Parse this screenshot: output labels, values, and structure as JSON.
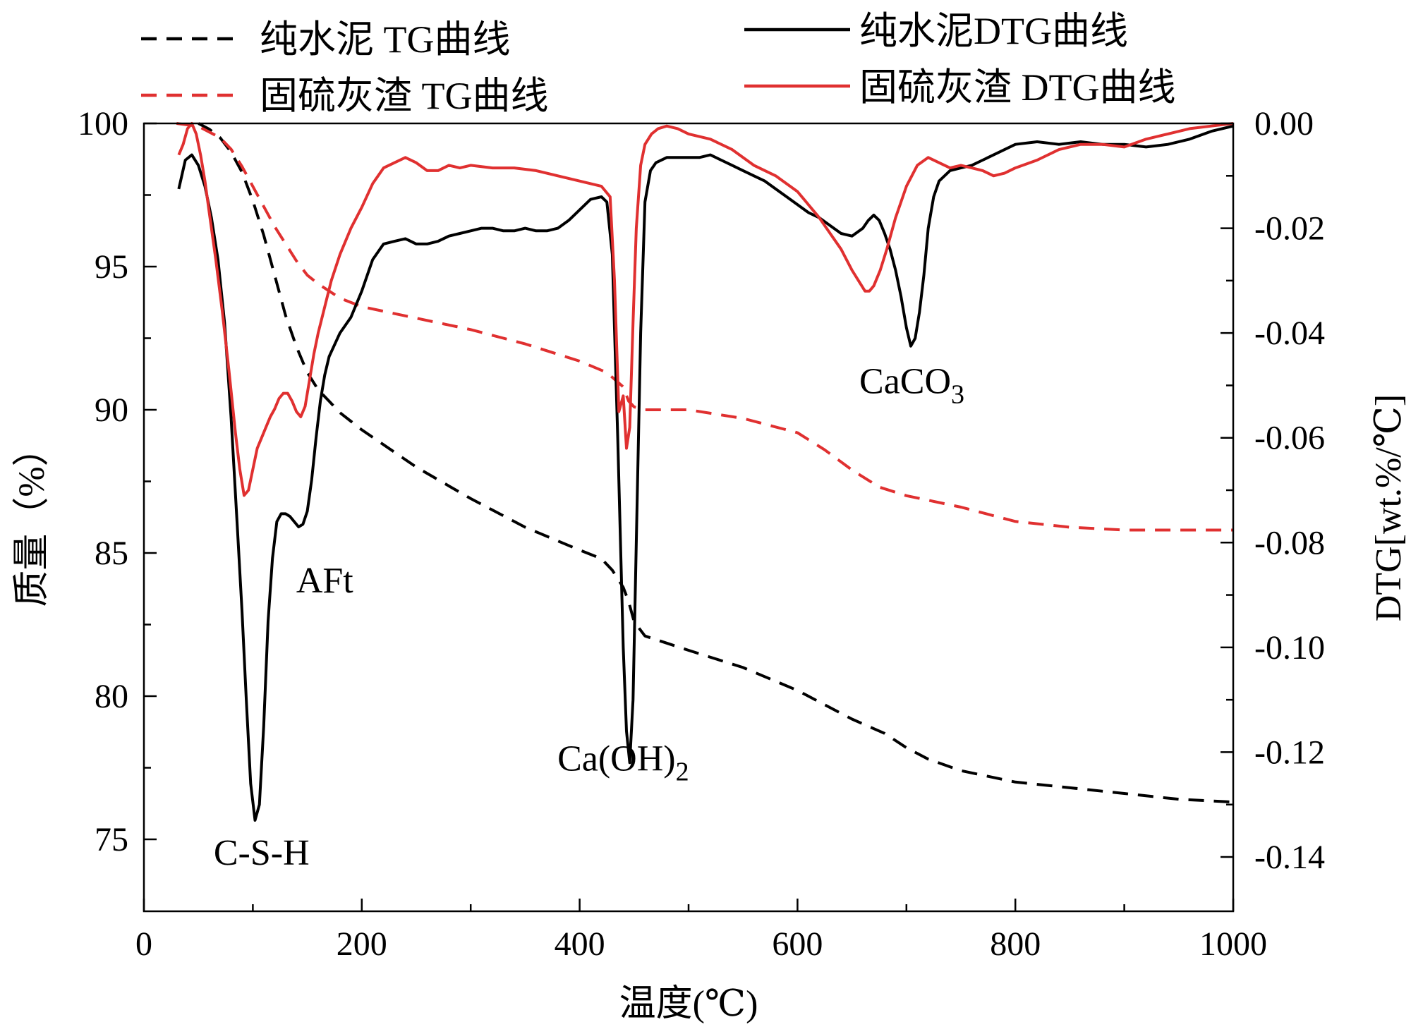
{
  "chart_data": {
    "type": "line",
    "xlabel": "温度(℃)",
    "ylabel_left": "质量（%）",
    "ylabel_right": "DTG[wt.%/℃]",
    "xlim": [
      0,
      1000
    ],
    "ylim_left": [
      72,
      100
    ],
    "ylim_right": [
      -0.15,
      0.0
    ],
    "x_ticks": [
      "0",
      "200",
      "400",
      "600",
      "800",
      "1000"
    ],
    "y_left_ticks": [
      "75",
      "80",
      "85",
      "90",
      "95",
      "100"
    ],
    "y_right_ticks": [
      "0.00",
      "-0.02",
      "-0.04",
      "-0.06",
      "-0.08",
      "-0.10",
      "-0.12",
      "-0.14"
    ],
    "legend": [
      {
        "label": "纯水泥 TG曲线",
        "color": "#000000",
        "dash": true
      },
      {
        "label": "纯水泥DTG曲线",
        "color": "#000000",
        "dash": false
      },
      {
        "label": "固硫灰渣 TG曲线",
        "color": "#e03030",
        "dash": true
      },
      {
        "label": "固硫灰渣 DTG曲线",
        "color": "#e03030",
        "dash": false
      }
    ],
    "annotations": [
      {
        "text": "C-S-H",
        "x": 108,
        "y_dtg": -0.1415
      },
      {
        "text": "AFt",
        "x": 166,
        "y_dtg": -0.0895
      },
      {
        "text": "Ca(OH)",
        "sub": "2",
        "x": 440,
        "y_dtg": -0.1235
      },
      {
        "text": "CaCO",
        "sub": "3",
        "x": 705,
        "y_dtg": -0.0515
      }
    ],
    "series": [
      {
        "name": "纯水泥 TG曲线",
        "axis": "left",
        "color": "#000000",
        "dash": true,
        "x": [
          50,
          60,
          70,
          80,
          90,
          100,
          110,
          120,
          130,
          140,
          150,
          160,
          170,
          180,
          200,
          250,
          300,
          350,
          400,
          420,
          430,
          440,
          445,
          450,
          460,
          500,
          550,
          600,
          650,
          680,
          700,
          720,
          750,
          800,
          850,
          900,
          950,
          1000
        ],
        "y": [
          100.0,
          99.8,
          99.5,
          99.0,
          98.3,
          97.3,
          96.1,
          94.7,
          93.3,
          92.2,
          91.3,
          90.7,
          90.3,
          89.9,
          89.3,
          88.0,
          86.9,
          85.9,
          85.1,
          84.8,
          84.4,
          83.8,
          83.3,
          82.6,
          82.1,
          81.6,
          81.0,
          80.2,
          79.2,
          78.7,
          78.2,
          77.8,
          77.4,
          77.0,
          76.8,
          76.6,
          76.4,
          76.3
        ]
      },
      {
        "name": "固硫灰渣 TG曲线",
        "axis": "left",
        "color": "#e03030",
        "dash": true,
        "x": [
          30,
          50,
          70,
          80,
          90,
          100,
          110,
          120,
          130,
          140,
          150,
          160,
          180,
          200,
          250,
          300,
          350,
          400,
          425,
          440,
          445,
          450,
          460,
          500,
          550,
          600,
          625,
          650,
          675,
          700,
          750,
          800,
          850,
          900,
          950,
          1000
        ],
        "y": [
          100.0,
          99.9,
          99.5,
          99.1,
          98.5,
          97.8,
          97.1,
          96.4,
          95.8,
          95.2,
          94.7,
          94.4,
          93.9,
          93.6,
          93.2,
          92.8,
          92.3,
          91.7,
          91.3,
          90.8,
          90.3,
          90.1,
          90.0,
          90.0,
          89.7,
          89.2,
          88.6,
          87.9,
          87.3,
          87.0,
          86.6,
          86.1,
          85.9,
          85.8,
          85.8,
          85.8
        ]
      },
      {
        "name": "纯水泥DTG曲线",
        "axis": "right",
        "color": "#000000",
        "dash": false,
        "x": [
          32,
          38,
          44,
          50,
          56,
          62,
          68,
          74,
          80,
          86,
          90,
          94,
          98,
          102,
          106,
          110,
          114,
          118,
          122,
          126,
          130,
          134,
          138,
          142,
          146,
          150,
          154,
          158,
          162,
          166,
          170,
          180,
          190,
          200,
          210,
          220,
          230,
          240,
          250,
          260,
          270,
          280,
          290,
          300,
          310,
          320,
          330,
          340,
          350,
          360,
          370,
          380,
          390,
          400,
          410,
          420,
          425,
          430,
          435,
          440,
          443,
          446,
          449,
          452,
          456,
          460,
          465,
          470,
          480,
          490,
          500,
          510,
          520,
          530,
          540,
          550,
          560,
          570,
          580,
          590,
          600,
          610,
          620,
          630,
          640,
          650,
          660,
          665,
          670,
          675,
          680,
          685,
          690,
          695,
          700,
          704,
          708,
          712,
          716,
          720,
          725,
          730,
          740,
          750,
          760,
          770,
          780,
          800,
          820,
          840,
          860,
          880,
          900,
          920,
          940,
          960,
          980,
          1000
        ],
        "y": [
          -0.0125,
          -0.007,
          -0.006,
          -0.008,
          -0.012,
          -0.018,
          -0.026,
          -0.038,
          -0.056,
          -0.078,
          -0.093,
          -0.11,
          -0.126,
          -0.133,
          -0.13,
          -0.115,
          -0.095,
          -0.083,
          -0.076,
          -0.0745,
          -0.0745,
          -0.075,
          -0.076,
          -0.077,
          -0.0765,
          -0.074,
          -0.068,
          -0.06,
          -0.053,
          -0.048,
          -0.0445,
          -0.04,
          -0.037,
          -0.032,
          -0.026,
          -0.023,
          -0.0225,
          -0.022,
          -0.023,
          -0.023,
          -0.0225,
          -0.0215,
          -0.021,
          -0.0205,
          -0.02,
          -0.02,
          -0.0205,
          -0.0205,
          -0.02,
          -0.0205,
          -0.0205,
          -0.02,
          -0.0185,
          -0.0165,
          -0.0145,
          -0.014,
          -0.015,
          -0.025,
          -0.06,
          -0.1,
          -0.116,
          -0.122,
          -0.11,
          -0.08,
          -0.04,
          -0.015,
          -0.009,
          -0.0075,
          -0.0065,
          -0.0065,
          -0.0065,
          -0.0065,
          -0.006,
          -0.007,
          -0.008,
          -0.009,
          -0.01,
          -0.011,
          -0.0125,
          -0.014,
          -0.0155,
          -0.017,
          -0.018,
          -0.0195,
          -0.021,
          -0.0215,
          -0.02,
          -0.0185,
          -0.0175,
          -0.0185,
          -0.021,
          -0.024,
          -0.028,
          -0.033,
          -0.039,
          -0.0425,
          -0.041,
          -0.036,
          -0.029,
          -0.02,
          -0.014,
          -0.011,
          -0.009,
          -0.0085,
          -0.008,
          -0.007,
          -0.006,
          -0.004,
          -0.0035,
          -0.004,
          -0.0035,
          -0.004,
          -0.004,
          -0.0045,
          -0.004,
          -0.003,
          -0.0015,
          -0.0005
        ]
      },
      {
        "name": "固硫灰渣 DTG曲线",
        "axis": "right",
        "color": "#e03030",
        "dash": false,
        "x": [
          32,
          36,
          40,
          44,
          48,
          52,
          56,
          60,
          66,
          72,
          78,
          84,
          88,
          92,
          96,
          100,
          104,
          108,
          112,
          116,
          120,
          124,
          128,
          132,
          136,
          140,
          144,
          148,
          152,
          156,
          160,
          166,
          172,
          180,
          190,
          200,
          210,
          220,
          230,
          240,
          250,
          260,
          270,
          280,
          290,
          300,
          320,
          340,
          360,
          380,
          400,
          420,
          428,
          432,
          436,
          440,
          443,
          446,
          449,
          452,
          456,
          460,
          466,
          472,
          480,
          490,
          500,
          520,
          540,
          560,
          580,
          600,
          620,
          630,
          640,
          650,
          656,
          662,
          666,
          670,
          676,
          682,
          690,
          700,
          710,
          720,
          730,
          740,
          750,
          760,
          770,
          780,
          790,
          800,
          820,
          840,
          860,
          880,
          900,
          920,
          940,
          960,
          980,
          1000
        ],
        "y": [
          -0.006,
          -0.004,
          -0.001,
          0.0,
          -0.002,
          -0.006,
          -0.011,
          -0.017,
          -0.026,
          -0.036,
          -0.047,
          -0.059,
          -0.066,
          -0.071,
          -0.07,
          -0.066,
          -0.062,
          -0.06,
          -0.058,
          -0.056,
          -0.0545,
          -0.0525,
          -0.0515,
          -0.0515,
          -0.053,
          -0.055,
          -0.056,
          -0.054,
          -0.049,
          -0.044,
          -0.04,
          -0.035,
          -0.03,
          -0.025,
          -0.02,
          -0.016,
          -0.0115,
          -0.0085,
          -0.0075,
          -0.0065,
          -0.0075,
          -0.009,
          -0.009,
          -0.008,
          -0.0085,
          -0.008,
          -0.0085,
          -0.0085,
          -0.009,
          -0.01,
          -0.011,
          -0.012,
          -0.014,
          -0.03,
          -0.055,
          -0.052,
          -0.062,
          -0.058,
          -0.038,
          -0.02,
          -0.008,
          -0.004,
          -0.002,
          -0.001,
          -0.0005,
          -0.001,
          -0.002,
          -0.003,
          -0.005,
          -0.008,
          -0.01,
          -0.013,
          -0.018,
          -0.021,
          -0.024,
          -0.028,
          -0.03,
          -0.032,
          -0.032,
          -0.031,
          -0.028,
          -0.024,
          -0.018,
          -0.012,
          -0.008,
          -0.0065,
          -0.0075,
          -0.0085,
          -0.008,
          -0.0085,
          -0.009,
          -0.01,
          -0.0095,
          -0.0085,
          -0.007,
          -0.005,
          -0.004,
          -0.004,
          -0.0045,
          -0.003,
          -0.002,
          -0.001,
          -0.0005,
          0.0
        ]
      }
    ]
  }
}
